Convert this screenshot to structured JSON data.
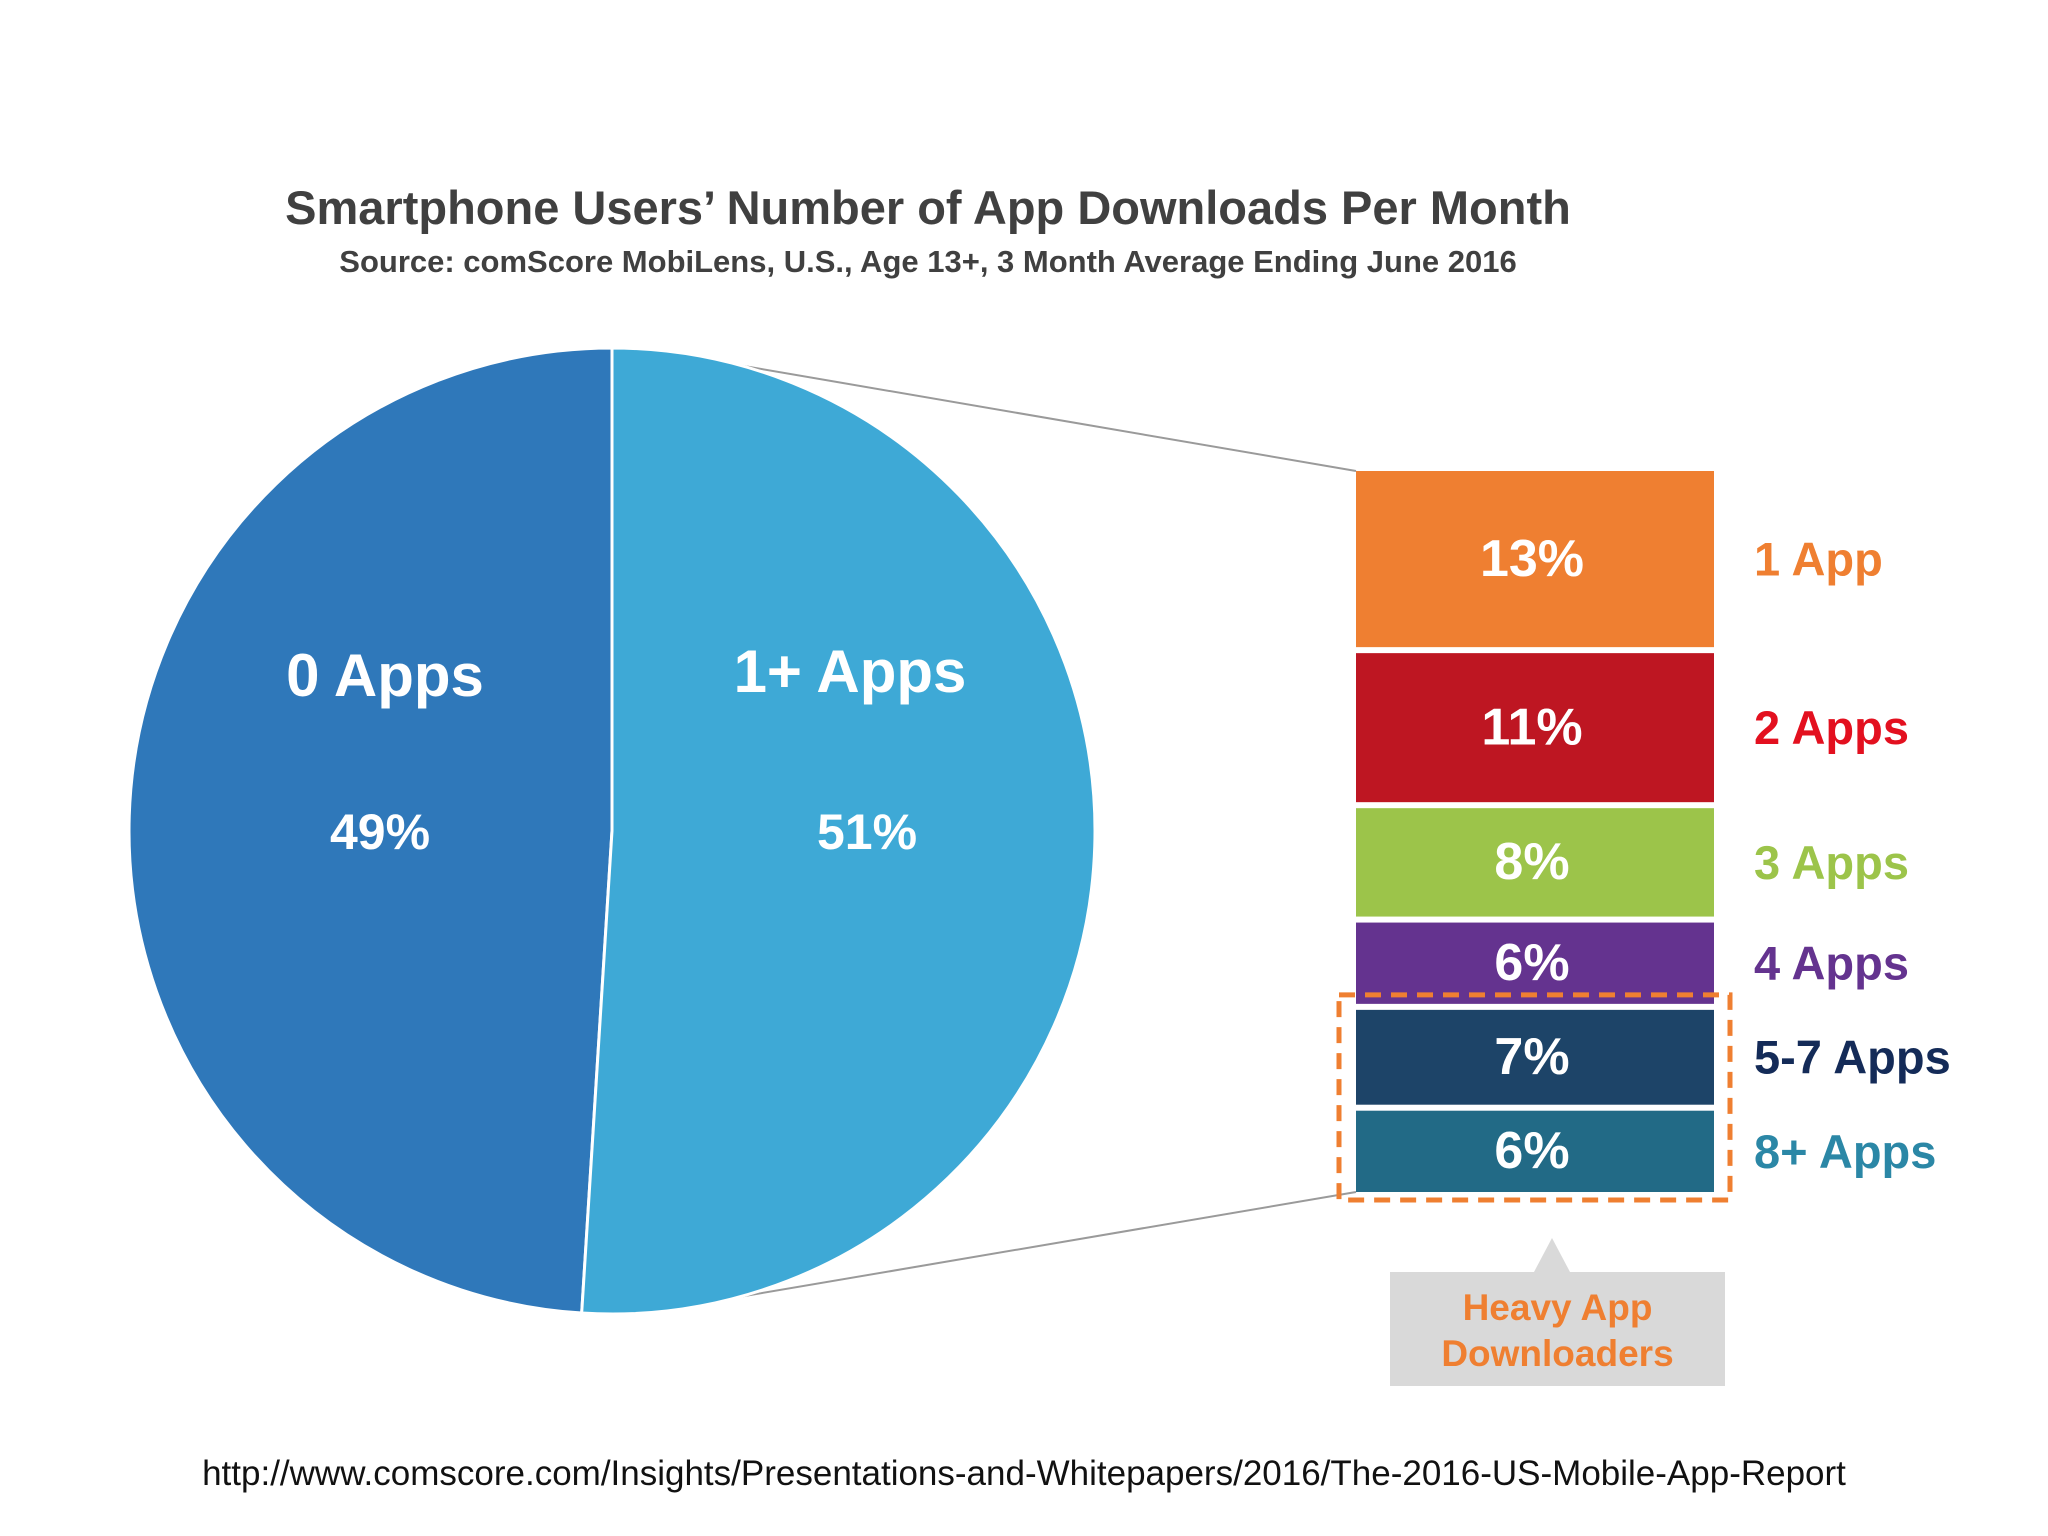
{
  "slide": {
    "title": "Smartphone Users’ Number of App Downloads Per Month",
    "subtitle": "Source: comScore MobiLens, U.S., Age 13+, 3 Month Average Ending June 2016",
    "source_url": "http://www.comscore.com/Insights/Presentations-and-Whitepapers/2016/The-2016-US-Mobile-App-Report"
  },
  "chart_data": [
    {
      "type": "pie",
      "title": "Smartphone Users’ Number of App Downloads Per Month",
      "subtitle": "Source: comScore MobiLens, U.S., Age 13+, 3 Month Average Ending June 2016",
      "slices": [
        {
          "label": "0 Apps",
          "value": 49,
          "display": "49%",
          "color": "#2f78ba"
        },
        {
          "label": "1+ Apps",
          "value": 51,
          "display": "51%",
          "color": "#3ea9d6"
        }
      ]
    },
    {
      "type": "bar",
      "stacked": true,
      "breakdown_of": "1+ Apps",
      "segments": [
        {
          "label": "1 App",
          "value": 13,
          "display": "13%",
          "color": "#ef7f31",
          "label_color": "#ef7f31"
        },
        {
          "label": "2 Apps",
          "value": 11,
          "display": "11%",
          "color": "#be1622",
          "label_color": "#e3101f"
        },
        {
          "label": "3 Apps",
          "value": 8,
          "display": "8%",
          "color": "#9cc44a",
          "label_color": "#9cc44a"
        },
        {
          "label": "4 Apps",
          "value": 6,
          "display": "6%",
          "color": "#64338f",
          "label_color": "#64338f"
        },
        {
          "label": "5-7 Apps",
          "value": 7,
          "display": "7%",
          "color": "#1d4468",
          "label_color": "#142b58"
        },
        {
          "label": "8+ Apps",
          "value": 6,
          "display": "6%",
          "color": "#226a86",
          "label_color": "#2b87a6"
        }
      ],
      "callout": {
        "text_lines": [
          "Heavy App",
          "Downloaders"
        ],
        "groups": [
          "5-7 Apps",
          "8+ Apps"
        ],
        "text_color": "#ef7f31",
        "box_color": "#d9d9d9",
        "outline_color": "#ef7f31"
      }
    }
  ]
}
